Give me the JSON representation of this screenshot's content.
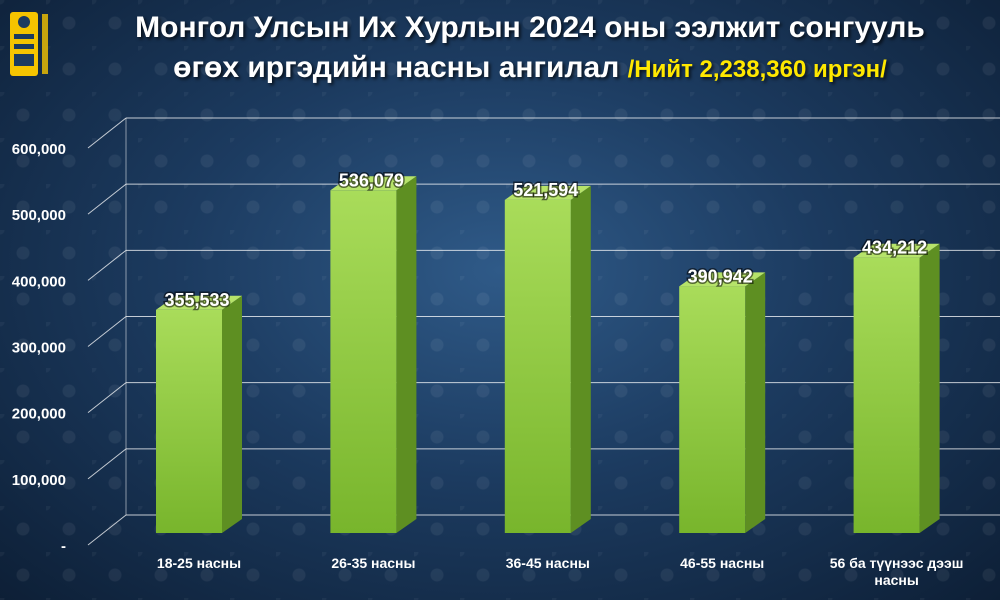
{
  "header": {
    "title_line1": "Монгол Улсын Их Хурлын 2024 оны ээлжит сонгууль",
    "title_line2": "өгөх иргэдийн насны ангилал",
    "total": "/Нийт 2,238,360 иргэн/"
  },
  "logo": {
    "icon": "soyombo-emblem-icon",
    "color": "#f5c400"
  },
  "chart_data": {
    "type": "bar",
    "categories": [
      "18-25 насны",
      "26-35 насны",
      "36-45 насны",
      "46-55 насны",
      "56 ба түүнээс дээш насны"
    ],
    "values": [
      355533,
      536079,
      521594,
      390942,
      434212
    ],
    "data_labels": [
      "355,533",
      "536,079",
      "521,594",
      "390,942",
      "434,212"
    ],
    "yticks": [
      "-",
      "100,000",
      "200,000",
      "300,000",
      "400,000",
      "500,000",
      "600,000"
    ],
    "ylim": [
      0,
      600000
    ],
    "grid": true,
    "bar_color": "#8cc63f"
  }
}
